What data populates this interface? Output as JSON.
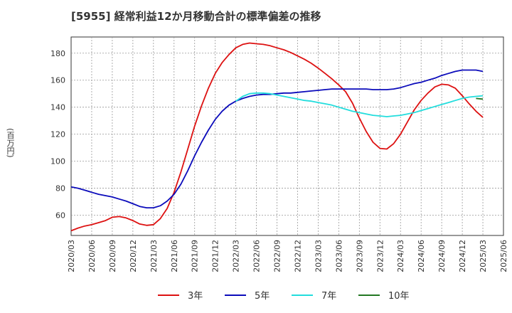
{
  "chart_data": {
    "type": "line",
    "title": "[5955]  経常利益12か月移動合計の標準偏差の推移",
    "ylabel": "(百万円)",
    "xlabel": "",
    "ylim": [
      45,
      192
    ],
    "yticks": [
      60,
      80,
      100,
      120,
      140,
      160,
      180
    ],
    "x_start": "2020/03",
    "x_end": "2025/06",
    "x_ticks": [
      "2020/03",
      "2020/06",
      "2020/09",
      "2020/12",
      "2021/03",
      "2021/06",
      "2021/09",
      "2021/12",
      "2022/03",
      "2022/06",
      "2022/09",
      "2022/12",
      "2023/03",
      "2023/06",
      "2023/09",
      "2023/12",
      "2024/03",
      "2024/06",
      "2024/09",
      "2024/12",
      "2025/03",
      "2025/06"
    ],
    "grid": true,
    "legend_position": "bottom",
    "series": [
      {
        "name": "3年",
        "color": "#dd1111",
        "points": [
          [
            "2020/03",
            48.5
          ],
          [
            "2020/04",
            50.5
          ],
          [
            "2020/05",
            52
          ],
          [
            "2020/06",
            53
          ],
          [
            "2020/07",
            54.5
          ],
          [
            "2020/08",
            56
          ],
          [
            "2020/09",
            58.5
          ],
          [
            "2020/10",
            59
          ],
          [
            "2020/11",
            58
          ],
          [
            "2020/12",
            56
          ],
          [
            "2021/01",
            53.5
          ],
          [
            "2021/02",
            52.5
          ],
          [
            "2021/03",
            53
          ],
          [
            "2021/04",
            57.5
          ],
          [
            "2021/05",
            65
          ],
          [
            "2021/06",
            77
          ],
          [
            "2021/07",
            92
          ],
          [
            "2021/08",
            109
          ],
          [
            "2021/09",
            126
          ],
          [
            "2021/10",
            141
          ],
          [
            "2021/11",
            154
          ],
          [
            "2021/12",
            165
          ],
          [
            "2022/01",
            173
          ],
          [
            "2022/02",
            179
          ],
          [
            "2022/03",
            184
          ],
          [
            "2022/04",
            186.5
          ],
          [
            "2022/05",
            187.5
          ],
          [
            "2022/06",
            187
          ],
          [
            "2022/07",
            186.5
          ],
          [
            "2022/08",
            185.5
          ],
          [
            "2022/09",
            184
          ],
          [
            "2022/10",
            182.5
          ],
          [
            "2022/11",
            180.5
          ],
          [
            "2022/12",
            178
          ],
          [
            "2023/01",
            175.5
          ],
          [
            "2023/02",
            172.5
          ],
          [
            "2023/03",
            169
          ],
          [
            "2023/04",
            165
          ],
          [
            "2023/05",
            161
          ],
          [
            "2023/06",
            156.5
          ],
          [
            "2023/07",
            151.5
          ],
          [
            "2023/08",
            143
          ],
          [
            "2023/09",
            132
          ],
          [
            "2023/10",
            122
          ],
          [
            "2023/11",
            114
          ],
          [
            "2023/12",
            109.5
          ],
          [
            "2024/01",
            109
          ],
          [
            "2024/02",
            113
          ],
          [
            "2024/03",
            120
          ],
          [
            "2024/04",
            129
          ],
          [
            "2024/05",
            138
          ],
          [
            "2024/06",
            145
          ],
          [
            "2024/07",
            150.5
          ],
          [
            "2024/08",
            155
          ],
          [
            "2024/09",
            157
          ],
          [
            "2024/10",
            156.5
          ],
          [
            "2024/11",
            154
          ],
          [
            "2024/12",
            148.5
          ],
          [
            "2025/01",
            142.5
          ],
          [
            "2025/02",
            137
          ],
          [
            "2025/03",
            132.5
          ]
        ]
      },
      {
        "name": "5年",
        "color": "#0b0bbb",
        "points": [
          [
            "2020/03",
            81
          ],
          [
            "2020/04",
            80
          ],
          [
            "2020/05",
            78.5
          ],
          [
            "2020/06",
            77
          ],
          [
            "2020/07",
            75.5
          ],
          [
            "2020/08",
            74.5
          ],
          [
            "2020/09",
            73.5
          ],
          [
            "2020/10",
            72
          ],
          [
            "2020/11",
            70.5
          ],
          [
            "2020/12",
            68.5
          ],
          [
            "2021/01",
            66.5
          ],
          [
            "2021/02",
            65.5
          ],
          [
            "2021/03",
            65.5
          ],
          [
            "2021/04",
            67
          ],
          [
            "2021/05",
            70.5
          ],
          [
            "2021/06",
            75.5
          ],
          [
            "2021/07",
            83
          ],
          [
            "2021/08",
            93
          ],
          [
            "2021/09",
            104
          ],
          [
            "2021/10",
            114
          ],
          [
            "2021/11",
            123
          ],
          [
            "2021/12",
            131
          ],
          [
            "2022/01",
            137
          ],
          [
            "2022/02",
            141.5
          ],
          [
            "2022/03",
            144.5
          ],
          [
            "2022/04",
            146.5
          ],
          [
            "2022/05",
            148
          ],
          [
            "2022/06",
            149
          ],
          [
            "2022/07",
            149.5
          ],
          [
            "2022/08",
            149.5
          ],
          [
            "2022/09",
            150
          ],
          [
            "2022/10",
            150.5
          ],
          [
            "2022/11",
            150.5
          ],
          [
            "2022/12",
            151
          ],
          [
            "2023/01",
            151.5
          ],
          [
            "2023/02",
            152
          ],
          [
            "2023/03",
            152.5
          ],
          [
            "2023/04",
            153
          ],
          [
            "2023/05",
            153.5
          ],
          [
            "2023/06",
            153.5
          ],
          [
            "2023/07",
            153.5
          ],
          [
            "2023/08",
            153.5
          ],
          [
            "2023/09",
            153.5
          ],
          [
            "2023/10",
            153.5
          ],
          [
            "2023/11",
            153
          ],
          [
            "2023/12",
            153
          ],
          [
            "2024/01",
            153
          ],
          [
            "2024/02",
            153.5
          ],
          [
            "2024/03",
            154.5
          ],
          [
            "2024/04",
            156
          ],
          [
            "2024/05",
            157.5
          ],
          [
            "2024/06",
            158.5
          ],
          [
            "2024/07",
            160
          ],
          [
            "2024/08",
            161.5
          ],
          [
            "2024/09",
            163.5
          ],
          [
            "2024/10",
            165
          ],
          [
            "2024/11",
            166.5
          ],
          [
            "2024/12",
            167.5
          ],
          [
            "2025/01",
            167.5
          ],
          [
            "2025/02",
            167.5
          ],
          [
            "2025/03",
            166.5
          ]
        ]
      },
      {
        "name": "7年",
        "color": "#22dddd",
        "points": [
          [
            "2022/03",
            144.5
          ],
          [
            "2022/04",
            148
          ],
          [
            "2022/05",
            150
          ],
          [
            "2022/06",
            150.5
          ],
          [
            "2022/07",
            150.5
          ],
          [
            "2022/08",
            150
          ],
          [
            "2022/09",
            149
          ],
          [
            "2022/10",
            148
          ],
          [
            "2022/11",
            147
          ],
          [
            "2022/12",
            146
          ],
          [
            "2023/01",
            145
          ],
          [
            "2023/02",
            144.5
          ],
          [
            "2023/03",
            143.5
          ],
          [
            "2023/04",
            142.5
          ],
          [
            "2023/05",
            141.5
          ],
          [
            "2023/06",
            140
          ],
          [
            "2023/07",
            138.5
          ],
          [
            "2023/08",
            137
          ],
          [
            "2023/09",
            136
          ],
          [
            "2023/10",
            135
          ],
          [
            "2023/11",
            134
          ],
          [
            "2023/12",
            133.5
          ],
          [
            "2024/01",
            133
          ],
          [
            "2024/02",
            133.5
          ],
          [
            "2024/03",
            134
          ],
          [
            "2024/04",
            135
          ],
          [
            "2024/05",
            136
          ],
          [
            "2024/06",
            137.5
          ],
          [
            "2024/07",
            139
          ],
          [
            "2024/08",
            140.5
          ],
          [
            "2024/09",
            142
          ],
          [
            "2024/10",
            143.5
          ],
          [
            "2024/11",
            145
          ],
          [
            "2024/12",
            146.5
          ],
          [
            "2025/01",
            147.5
          ],
          [
            "2025/02",
            148
          ],
          [
            "2025/03",
            148.5
          ]
        ]
      },
      {
        "name": "10年",
        "color": "#227722",
        "points": [
          [
            "2025/02",
            146.5
          ],
          [
            "2025/03",
            146
          ]
        ]
      }
    ]
  }
}
